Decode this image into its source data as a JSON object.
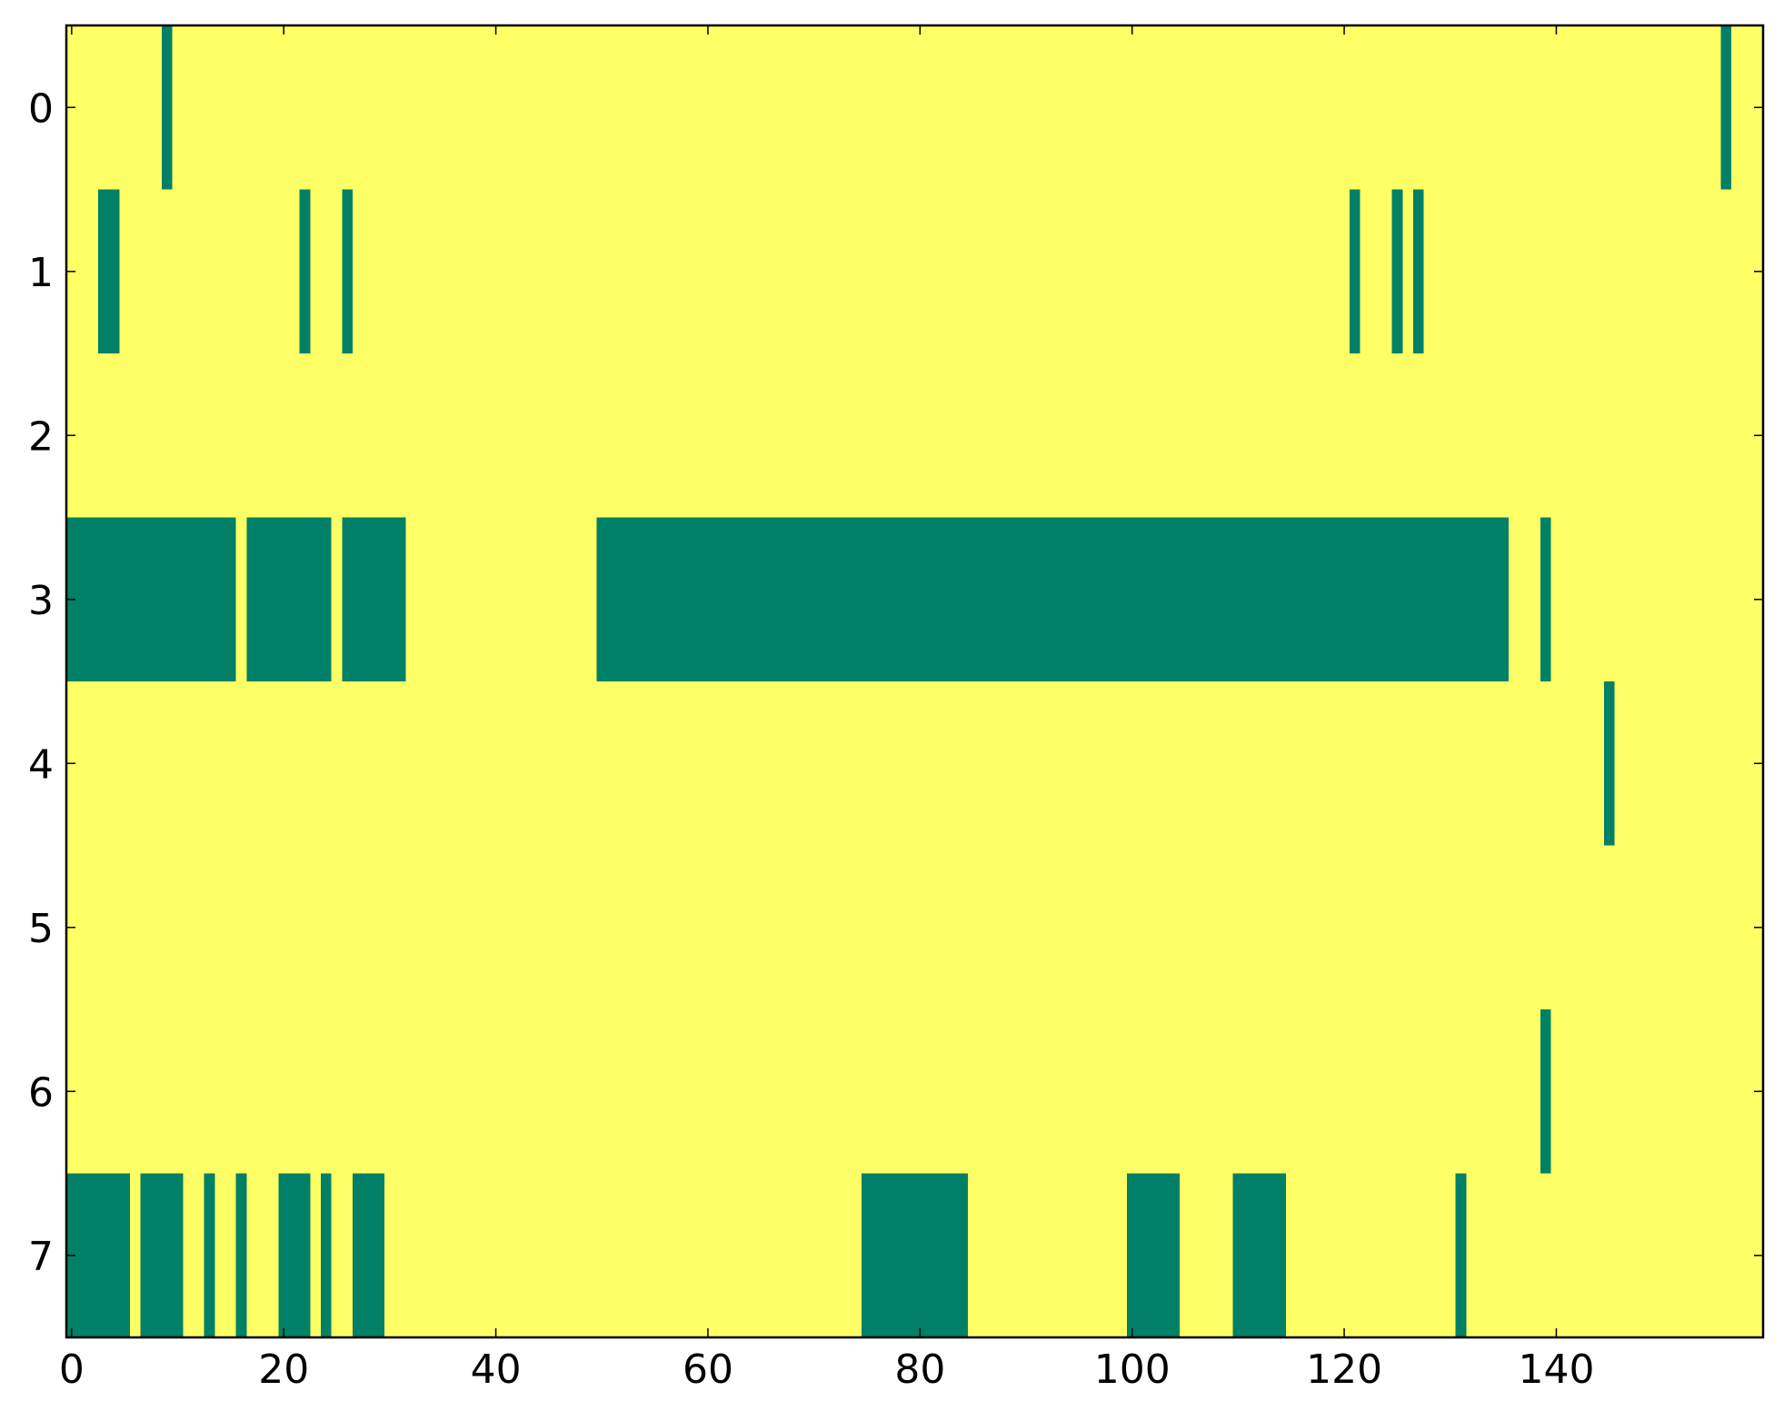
{
  "chart_data": {
    "type": "heatmap",
    "xlim": [
      -0.5,
      159.5
    ],
    "ylim": [
      7.5,
      -0.5
    ],
    "xticks": [
      0,
      20,
      40,
      60,
      80,
      100,
      120,
      140
    ],
    "yticks": [
      0,
      1,
      2,
      3,
      4,
      5,
      6,
      7
    ],
    "colormap": [
      "#ffff66",
      "#008066"
    ],
    "z": [
      [
        0,
        0,
        0,
        0,
        0,
        0,
        0,
        0,
        0,
        1,
        0,
        0,
        0,
        0,
        0,
        0,
        0,
        0,
        0,
        0,
        0,
        0,
        0,
        0,
        0,
        0,
        0,
        0,
        0,
        0,
        0,
        0,
        0,
        0,
        0,
        0,
        0,
        0,
        0,
        0,
        0,
        0,
        0,
        0,
        0,
        0,
        0,
        0,
        0,
        0,
        0,
        0,
        0,
        0,
        0,
        0,
        0,
        0,
        0,
        0,
        0,
        0,
        0,
        0,
        0,
        0,
        0,
        0,
        0,
        0,
        0,
        0,
        0,
        0,
        0,
        0,
        0,
        0,
        0,
        0,
        0,
        0,
        0,
        0,
        0,
        0,
        0,
        0,
        0,
        0,
        0,
        0,
        0,
        0,
        0,
        0,
        0,
        0,
        0,
        0,
        0,
        0,
        0,
        0,
        0,
        0,
        0,
        0,
        0,
        0,
        0,
        0,
        0,
        0,
        0,
        0,
        0,
        0,
        0,
        0,
        0,
        0,
        0,
        0,
        0,
        0,
        0,
        0,
        0,
        0,
        0,
        0,
        0,
        0,
        0,
        0,
        0,
        0,
        0,
        0,
        0,
        0,
        0,
        0,
        0,
        0,
        0,
        0,
        0,
        0,
        0,
        0,
        0,
        0,
        0,
        0,
        1,
        0,
        0,
        0
      ],
      [
        0,
        0,
        0,
        1,
        1,
        0,
        0,
        0,
        0,
        0,
        0,
        0,
        0,
        0,
        0,
        0,
        0,
        0,
        0,
        0,
        0,
        0,
        1,
        0,
        0,
        0,
        1,
        0,
        0,
        0,
        0,
        0,
        0,
        0,
        0,
        0,
        0,
        0,
        0,
        0,
        0,
        0,
        0,
        0,
        0,
        0,
        0,
        0,
        0,
        0,
        0,
        0,
        0,
        0,
        0,
        0,
        0,
        0,
        0,
        0,
        0,
        0,
        0,
        0,
        0,
        0,
        0,
        0,
        0,
        0,
        0,
        0,
        0,
        0,
        0,
        0,
        0,
        0,
        0,
        0,
        0,
        0,
        0,
        0,
        0,
        0,
        0,
        0,
        0,
        0,
        0,
        0,
        0,
        0,
        0,
        0,
        0,
        0,
        0,
        0,
        0,
        0,
        0,
        0,
        0,
        0,
        0,
        0,
        0,
        0,
        0,
        0,
        0,
        0,
        0,
        0,
        0,
        0,
        0,
        0,
        0,
        1,
        0,
        0,
        0,
        1,
        0,
        1,
        0,
        0,
        0,
        0,
        0,
        0,
        0,
        0,
        0,
        0,
        0,
        0,
        0,
        0,
        0,
        0,
        0,
        0,
        0,
        0,
        0,
        0,
        0,
        0,
        0,
        0,
        0,
        0,
        0,
        0,
        0,
        0
      ],
      [
        0,
        0,
        0,
        0,
        0,
        0,
        0,
        0,
        0,
        0,
        0,
        0,
        0,
        0,
        0,
        0,
        0,
        0,
        0,
        0,
        0,
        0,
        0,
        0,
        0,
        0,
        0,
        0,
        0,
        0,
        0,
        0,
        0,
        0,
        0,
        0,
        0,
        0,
        0,
        0,
        0,
        0,
        0,
        0,
        0,
        0,
        0,
        0,
        0,
        0,
        0,
        0,
        0,
        0,
        0,
        0,
        0,
        0,
        0,
        0,
        0,
        0,
        0,
        0,
        0,
        0,
        0,
        0,
        0,
        0,
        0,
        0,
        0,
        0,
        0,
        0,
        0,
        0,
        0,
        0,
        0,
        0,
        0,
        0,
        0,
        0,
        0,
        0,
        0,
        0,
        0,
        0,
        0,
        0,
        0,
        0,
        0,
        0,
        0,
        0,
        0,
        0,
        0,
        0,
        0,
        0,
        0,
        0,
        0,
        0,
        0,
        0,
        0,
        0,
        0,
        0,
        0,
        0,
        0,
        0,
        0,
        0,
        0,
        0,
        0,
        0,
        0,
        0,
        0,
        0,
        0,
        0,
        0,
        0,
        0,
        0,
        0,
        0,
        0,
        0,
        0,
        0,
        0,
        0,
        0,
        0,
        0,
        0,
        0,
        0,
        0,
        0,
        0,
        0,
        0,
        0,
        0,
        0,
        0,
        0
      ],
      [
        1,
        1,
        1,
        1,
        1,
        1,
        1,
        1,
        1,
        1,
        1,
        1,
        1,
        1,
        1,
        1,
        0,
        1,
        1,
        1,
        1,
        1,
        1,
        1,
        1,
        0,
        1,
        1,
        1,
        1,
        1,
        1,
        0,
        0,
        0,
        0,
        0,
        0,
        0,
        0,
        0,
        0,
        0,
        0,
        0,
        0,
        0,
        0,
        0,
        0,
        1,
        1,
        1,
        1,
        1,
        1,
        1,
        1,
        1,
        1,
        1,
        1,
        1,
        1,
        1,
        1,
        1,
        1,
        1,
        1,
        1,
        1,
        1,
        1,
        1,
        1,
        1,
        1,
        1,
        1,
        1,
        1,
        1,
        1,
        1,
        1,
        1,
        1,
        1,
        1,
        1,
        1,
        1,
        1,
        1,
        1,
        1,
        1,
        1,
        1,
        1,
        1,
        1,
        1,
        1,
        1,
        1,
        1,
        1,
        1,
        1,
        1,
        1,
        1,
        1,
        1,
        1,
        1,
        1,
        1,
        1,
        1,
        1,
        1,
        1,
        1,
        1,
        1,
        1,
        1,
        1,
        1,
        1,
        1,
        1,
        1,
        0,
        0,
        0,
        1,
        0,
        0,
        0,
        0,
        0,
        0,
        0,
        0,
        0,
        0,
        0,
        0,
        0,
        0,
        0,
        0,
        0,
        0,
        0,
        0
      ],
      [
        0,
        0,
        0,
        0,
        0,
        0,
        0,
        0,
        0,
        0,
        0,
        0,
        0,
        0,
        0,
        0,
        0,
        0,
        0,
        0,
        0,
        0,
        0,
        0,
        0,
        0,
        0,
        0,
        0,
        0,
        0,
        0,
        0,
        0,
        0,
        0,
        0,
        0,
        0,
        0,
        0,
        0,
        0,
        0,
        0,
        0,
        0,
        0,
        0,
        0,
        0,
        0,
        0,
        0,
        0,
        0,
        0,
        0,
        0,
        0,
        0,
        0,
        0,
        0,
        0,
        0,
        0,
        0,
        0,
        0,
        0,
        0,
        0,
        0,
        0,
        0,
        0,
        0,
        0,
        0,
        0,
        0,
        0,
        0,
        0,
        0,
        0,
        0,
        0,
        0,
        0,
        0,
        0,
        0,
        0,
        0,
        0,
        0,
        0,
        0,
        0,
        0,
        0,
        0,
        0,
        0,
        0,
        0,
        0,
        0,
        0,
        0,
        0,
        0,
        0,
        0,
        0,
        0,
        0,
        0,
        0,
        0,
        0,
        0,
        0,
        0,
        0,
        0,
        0,
        0,
        0,
        0,
        0,
        0,
        0,
        0,
        0,
        0,
        0,
        0,
        0,
        0,
        0,
        0,
        0,
        1,
        0,
        0,
        0,
        0,
        0,
        0,
        0,
        0,
        0,
        0,
        0,
        0,
        0,
        0
      ],
      [
        0,
        0,
        0,
        0,
        0,
        0,
        0,
        0,
        0,
        0,
        0,
        0,
        0,
        0,
        0,
        0,
        0,
        0,
        0,
        0,
        0,
        0,
        0,
        0,
        0,
        0,
        0,
        0,
        0,
        0,
        0,
        0,
        0,
        0,
        0,
        0,
        0,
        0,
        0,
        0,
        0,
        0,
        0,
        0,
        0,
        0,
        0,
        0,
        0,
        0,
        0,
        0,
        0,
        0,
        0,
        0,
        0,
        0,
        0,
        0,
        0,
        0,
        0,
        0,
        0,
        0,
        0,
        0,
        0,
        0,
        0,
        0,
        0,
        0,
        0,
        0,
        0,
        0,
        0,
        0,
        0,
        0,
        0,
        0,
        0,
        0,
        0,
        0,
        0,
        0,
        0,
        0,
        0,
        0,
        0,
        0,
        0,
        0,
        0,
        0,
        0,
        0,
        0,
        0,
        0,
        0,
        0,
        0,
        0,
        0,
        0,
        0,
        0,
        0,
        0,
        0,
        0,
        0,
        0,
        0,
        0,
        0,
        0,
        0,
        0,
        0,
        0,
        0,
        0,
        0,
        0,
        0,
        0,
        0,
        0,
        0,
        0,
        0,
        0,
        0,
        0,
        0,
        0,
        0,
        0,
        0,
        0,
        0,
        0,
        0,
        0,
        0,
        0,
        0,
        0,
        0,
        0,
        0,
        0,
        0
      ],
      [
        0,
        0,
        0,
        0,
        0,
        0,
        0,
        0,
        0,
        0,
        0,
        0,
        0,
        0,
        0,
        0,
        0,
        0,
        0,
        0,
        0,
        0,
        0,
        0,
        0,
        0,
        0,
        0,
        0,
        0,
        0,
        0,
        0,
        0,
        0,
        0,
        0,
        0,
        0,
        0,
        0,
        0,
        0,
        0,
        0,
        0,
        0,
        0,
        0,
        0,
        0,
        0,
        0,
        0,
        0,
        0,
        0,
        0,
        0,
        0,
        0,
        0,
        0,
        0,
        0,
        0,
        0,
        0,
        0,
        0,
        0,
        0,
        0,
        0,
        0,
        0,
        0,
        0,
        0,
        0,
        0,
        0,
        0,
        0,
        0,
        0,
        0,
        0,
        0,
        0,
        0,
        0,
        0,
        0,
        0,
        0,
        0,
        0,
        0,
        0,
        0,
        0,
        0,
        0,
        0,
        0,
        0,
        0,
        0,
        0,
        0,
        0,
        0,
        0,
        0,
        0,
        0,
        0,
        0,
        0,
        0,
        0,
        0,
        0,
        0,
        0,
        0,
        0,
        0,
        0,
        0,
        0,
        0,
        0,
        0,
        0,
        0,
        0,
        0,
        1,
        0,
        0,
        0,
        0,
        0,
        0,
        0,
        0,
        0,
        0,
        0,
        0,
        0,
        0,
        0,
        0,
        0,
        0,
        0,
        0
      ],
      [
        1,
        1,
        1,
        1,
        1,
        1,
        0,
        1,
        1,
        1,
        1,
        0,
        0,
        1,
        0,
        0,
        1,
        0,
        0,
        0,
        1,
        1,
        1,
        0,
        1,
        0,
        0,
        1,
        1,
        1,
        0,
        0,
        0,
        0,
        0,
        0,
        0,
        0,
        0,
        0,
        0,
        0,
        0,
        0,
        0,
        0,
        0,
        0,
        0,
        0,
        0,
        0,
        0,
        0,
        0,
        0,
        0,
        0,
        0,
        0,
        0,
        0,
        0,
        0,
        0,
        0,
        0,
        0,
        0,
        0,
        0,
        0,
        0,
        0,
        0,
        1,
        1,
        1,
        1,
        1,
        1,
        1,
        1,
        1,
        1,
        0,
        0,
        0,
        0,
        0,
        0,
        0,
        0,
        0,
        0,
        0,
        0,
        0,
        0,
        0,
        1,
        1,
        1,
        1,
        1,
        0,
        0,
        0,
        0,
        0,
        1,
        1,
        1,
        1,
        1,
        0,
        0,
        0,
        0,
        0,
        0,
        0,
        0,
        0,
        0,
        0,
        0,
        0,
        0,
        0,
        0,
        1,
        0,
        0,
        0,
        0,
        0,
        0,
        0,
        0,
        0,
        0,
        0,
        0,
        0,
        0,
        0,
        0,
        0,
        0,
        0,
        0,
        0,
        0,
        0,
        0,
        0,
        0,
        0,
        0
      ]
    ]
  }
}
